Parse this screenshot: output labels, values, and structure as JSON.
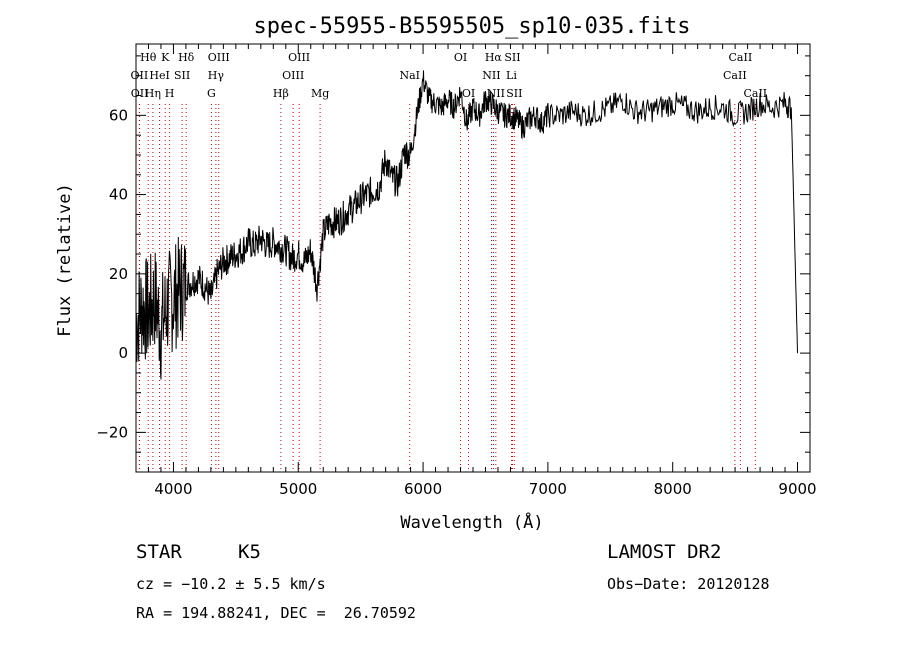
{
  "chart_data": {
    "type": "line",
    "title": "spec-55955-B5595505_sp10-035.fits",
    "xlabel": "Wavelength (Å)",
    "ylabel": "Flux (relative)",
    "xlim": [
      3700,
      9100
    ],
    "ylim": [
      -30,
      78
    ],
    "xticks": [
      4000,
      5000,
      6000,
      7000,
      8000,
      9000
    ],
    "yticks": [
      -20,
      0,
      20,
      40,
      60
    ],
    "xtick_labels": [
      "4000",
      "5000",
      "6000",
      "7000",
      "8000",
      "9000"
    ],
    "ytick_labels": [
      "−20",
      "0",
      "20",
      "40",
      "60"
    ],
    "grid": false,
    "series": [
      {
        "x": [
          3700,
          3750,
          3800,
          3850,
          3900,
          3950,
          4000,
          4050,
          4100,
          4150,
          4200,
          4250,
          4300,
          4350,
          4400,
          4450,
          4500,
          4550,
          4600,
          4650,
          4700,
          4750,
          4800,
          4850,
          4900,
          4950,
          5000,
          5050,
          5100,
          5150,
          5200,
          5250,
          5300,
          5350,
          5400,
          5450,
          5500,
          5550,
          5600,
          5650,
          5700,
          5750,
          5800,
          5850,
          5900,
          5950,
          6000,
          6050,
          6100,
          6150,
          6200,
          6250,
          6300,
          6350,
          6400,
          6450,
          6500,
          6550,
          6600,
          6650,
          6700,
          6750,
          6800,
          6850,
          6900,
          6950,
          7000,
          7100,
          7200,
          7300,
          7400,
          7500,
          7600,
          7700,
          7800,
          7900,
          8000,
          8100,
          8200,
          8300,
          8400,
          8500,
          8600,
          8700,
          8800,
          8900,
          8950,
          9000
        ],
        "values": [
          8,
          12,
          10,
          14,
          6,
          12,
          14,
          16,
          17,
          18,
          19,
          17,
          14,
          20,
          23,
          24,
          25,
          26,
          28,
          27,
          29,
          27,
          28,
          27,
          26,
          24,
          25,
          23,
          26,
          17,
          30,
          33,
          33,
          34,
          36,
          37,
          39,
          40,
          41,
          42,
          49,
          44,
          43,
          51,
          50,
          60,
          69,
          64,
          63,
          62,
          64,
          62,
          66,
          58,
          62,
          60,
          64,
          63,
          61,
          60,
          60,
          59,
          57,
          59,
          60,
          58,
          60,
          60,
          61,
          60,
          61,
          62,
          64,
          61,
          61,
          62,
          63,
          62,
          61,
          62,
          62,
          60,
          61,
          63,
          62,
          63,
          62,
          0
        ]
      }
    ],
    "line_markers": [
      {
        "label": "Hθ",
        "x": 3798,
        "row": 0
      },
      {
        "label": "K",
        "x": 3934,
        "row": 0
      },
      {
        "label": "Hδ",
        "x": 4102,
        "row": 0
      },
      {
        "label": "OIII",
        "x": 4363,
        "row": 0
      },
      {
        "label": "OIII",
        "x": 5007,
        "row": 0
      },
      {
        "label": "OI",
        "x": 6300,
        "row": 0
      },
      {
        "label": "Hα",
        "x": 6563,
        "row": 0
      },
      {
        "label": "SII",
        "x": 6716,
        "row": 0
      },
      {
        "label": "CaII",
        "x": 8542,
        "row": 0
      },
      {
        "label": "OII",
        "x": 3727,
        "row": 1
      },
      {
        "label": "HeI",
        "x": 3889,
        "row": 1
      },
      {
        "label": "SII",
        "x": 4069,
        "row": 1
      },
      {
        "label": "Hγ",
        "x": 4340,
        "row": 1
      },
      {
        "label": "OIII",
        "x": 4959,
        "row": 1
      },
      {
        "label": "NaI",
        "x": 5893,
        "row": 1
      },
      {
        "label": "NII",
        "x": 6548,
        "row": 1
      },
      {
        "label": "Li",
        "x": 6708,
        "row": 1
      },
      {
        "label": "CaII",
        "x": 8498,
        "row": 1
      },
      {
        "label": "OII",
        "x": 3729,
        "row": 2
      },
      {
        "label": "Hη",
        "x": 3835,
        "row": 2
      },
      {
        "label": "H",
        "x": 3969,
        "row": 2
      },
      {
        "label": "G",
        "x": 4304,
        "row": 2
      },
      {
        "label": "Hβ",
        "x": 4861,
        "row": 2
      },
      {
        "label": "Mg",
        "x": 5175,
        "row": 2
      },
      {
        "label": "OI",
        "x": 6364,
        "row": 2
      },
      {
        "label": "NII",
        "x": 6583,
        "row": 2
      },
      {
        "label": "SII",
        "x": 6731,
        "row": 2
      },
      {
        "label": "CaII",
        "x": 8662,
        "row": 2
      }
    ]
  },
  "info": {
    "class": "STAR",
    "subclass": "K5",
    "cz": "cz = −10.2 ± 5.5 km/s",
    "radec": "RA = 194.88241, DEC =  26.70592",
    "survey": "LAMOST DR2",
    "obsdate": "Obs−Date: 20120128"
  }
}
